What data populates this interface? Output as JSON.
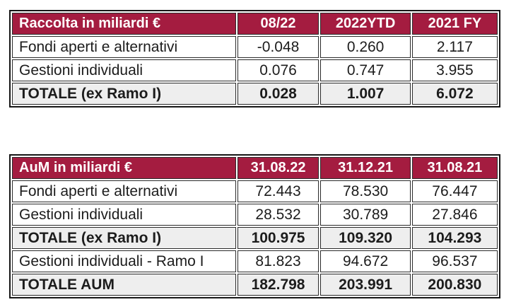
{
  "colors": {
    "header_background": "#a41c40",
    "header_text": "#ffffff",
    "total_row_background": "#eeeeee",
    "body_text": "#1c1c1c",
    "border": "#161616",
    "page_background": "#ffffff"
  },
  "chart_data": [
    {
      "type": "table",
      "title": "Raccolta in miliardi €",
      "columns": [
        "08/22",
        "2022YTD",
        "2021 FY"
      ],
      "rows": [
        {
          "label": "Fondi aperti e alternativi",
          "values": [
            "-0.048",
            "0.260",
            "2.117"
          ],
          "total": false
        },
        {
          "label": "Gestioni individuali",
          "values": [
            "0.076",
            "0.747",
            "3.955"
          ],
          "total": false
        },
        {
          "label": "TOTALE (ex Ramo I)",
          "values": [
            "0.028",
            "1.007",
            "6.072"
          ],
          "total": true
        }
      ]
    },
    {
      "type": "table",
      "title": "AuM in miliardi €",
      "columns": [
        "31.08.22",
        "31.12.21",
        "31.08.21"
      ],
      "rows": [
        {
          "label": "Fondi aperti e alternativi",
          "values": [
            "72.443",
            "78.530",
            "76.447"
          ],
          "total": false
        },
        {
          "label": "Gestioni individuali",
          "values": [
            "28.532",
            "30.789",
            "27.846"
          ],
          "total": false
        },
        {
          "label": "TOTALE (ex Ramo I)",
          "values": [
            "100.975",
            "109.320",
            "104.293"
          ],
          "total": true
        },
        {
          "label": "Gestioni individuali - Ramo I",
          "values": [
            "81.823",
            "94.672",
            "96.537"
          ],
          "total": false
        },
        {
          "label": "TOTALE AUM",
          "values": [
            "182.798",
            "203.991",
            "200.830"
          ],
          "total": true
        }
      ]
    }
  ]
}
